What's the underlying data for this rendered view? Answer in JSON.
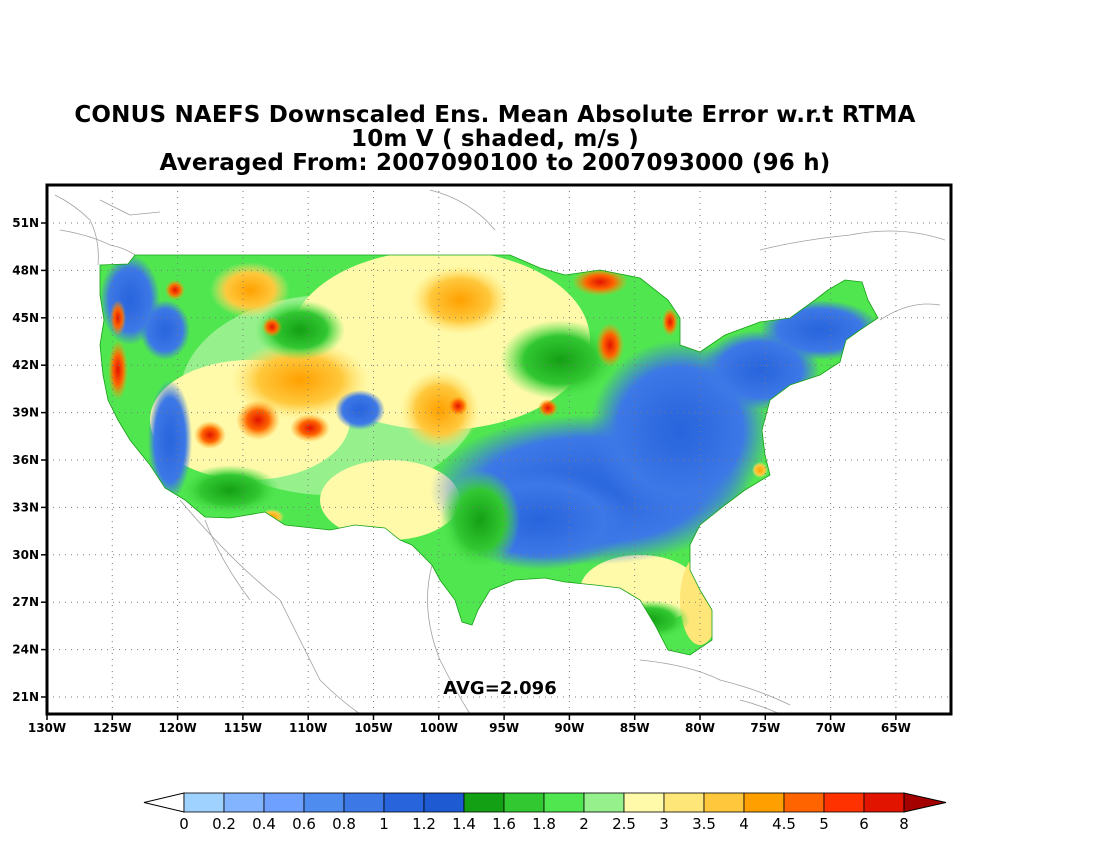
{
  "title": {
    "line1": "CONUS NAEFS Downscaled Ens. Mean Absolute Error w.r.t RTMA",
    "line2": "10m V ( shaded, m/s )",
    "line3": "Averaged From: 2007090100 to 2007093000 (96 h)"
  },
  "map": {
    "lat_ticks": [
      "51N",
      "48N",
      "45N",
      "42N",
      "39N",
      "36N",
      "33N",
      "30N",
      "27N",
      "24N",
      "21N"
    ],
    "lon_ticks": [
      "130W",
      "125W",
      "120W",
      "115W",
      "110W",
      "105W",
      "100W",
      "95W",
      "90W",
      "85W",
      "80W",
      "75W",
      "70W",
      "65W"
    ],
    "grid": true,
    "average_label": "AVG=2.096"
  },
  "colorbar": {
    "labels": [
      "0",
      "0.2",
      "0.4",
      "0.6",
      "0.8",
      "1",
      "1.2",
      "1.4",
      "1.6",
      "1.8",
      "2",
      "2.5",
      "3",
      "3.5",
      "4",
      "4.5",
      "5",
      "6",
      "8"
    ],
    "under_color": "#ffffff",
    "over_color": "#a50000",
    "colors": [
      "#a0d2ff",
      "#82b4ff",
      "#6ea0ff",
      "#4f8cf0",
      "#3c78e6",
      "#2864dc",
      "#1e5ad2",
      "#14a014",
      "#32c832",
      "#50e650",
      "#96f08c",
      "#fffaaa",
      "#ffe678",
      "#ffc83c",
      "#ffa000",
      "#ff6400",
      "#ff3200",
      "#e11400",
      "#a50000"
    ]
  }
}
